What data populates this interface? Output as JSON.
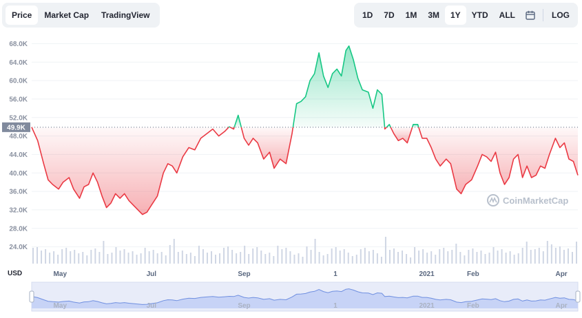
{
  "tabs": [
    {
      "label": "Price"
    },
    {
      "label": "Market Cap"
    },
    {
      "label": "TradingView"
    }
  ],
  "ranges": [
    {
      "label": "1D"
    },
    {
      "label": "7D"
    },
    {
      "label": "1M"
    },
    {
      "label": "3M"
    },
    {
      "label": "1Y"
    },
    {
      "label": "YTD"
    },
    {
      "label": "ALL"
    }
  ],
  "log_label": "LOG",
  "icons": {
    "calendar": "calendar-icon",
    "watermark": "coinmarketcap-logo-icon"
  },
  "watermark": "CoinMarketCap",
  "currency_label": "USD",
  "colors": {
    "up": "#16c784",
    "down": "#ea3943",
    "volume": "#cfd6e4",
    "navigator": "#6f8fe0"
  },
  "chart_data": {
    "type": "area",
    "reference_price": 49.9,
    "reference_label": "49.9K",
    "y_unit": "K USD",
    "ylim": [
      22,
      70
    ],
    "yticks": [
      24,
      28,
      32,
      36,
      40,
      44,
      48,
      52,
      56,
      60,
      64,
      68
    ],
    "ytick_labels": [
      "24.0K",
      "28.0K",
      "32.0K",
      "36.0K",
      "40.0K",
      "44.0K",
      "48.0K",
      "52.0K",
      "56.0K",
      "60.0K",
      "64.0K",
      "68.0K"
    ],
    "x_range": [
      "2021-04-12",
      "2022-04-12"
    ],
    "x_ticks": [
      {
        "date": "2021-05-01",
        "label": "May"
      },
      {
        "date": "2021-07-01",
        "label": "Jul"
      },
      {
        "date": "2021-09-01",
        "label": "Sep"
      },
      {
        "date": "2021-11-01",
        "label": "1"
      },
      {
        "date": "2022-01-01",
        "label": "2021"
      },
      {
        "date": "2022-02-01",
        "label": "Feb"
      },
      {
        "date": "2022-04-01",
        "label": "Apr"
      }
    ],
    "series": [
      {
        "points": [
          [
            "2021-04-12",
            49.9
          ],
          [
            "2021-04-16",
            47.0
          ],
          [
            "2021-04-20",
            42.0
          ],
          [
            "2021-04-23",
            38.5
          ],
          [
            "2021-04-26",
            37.5
          ],
          [
            "2021-04-30",
            36.5
          ],
          [
            "2021-05-03",
            38.0
          ],
          [
            "2021-05-07",
            39.0
          ],
          [
            "2021-05-10",
            36.5
          ],
          [
            "2021-05-14",
            34.5
          ],
          [
            "2021-05-17",
            37.0
          ],
          [
            "2021-05-20",
            37.5
          ],
          [
            "2021-05-23",
            40.0
          ],
          [
            "2021-05-26",
            38.0
          ],
          [
            "2021-05-29",
            35.0
          ],
          [
            "2021-06-01",
            32.5
          ],
          [
            "2021-06-04",
            33.5
          ],
          [
            "2021-06-07",
            35.5
          ],
          [
            "2021-06-10",
            34.5
          ],
          [
            "2021-06-13",
            35.5
          ],
          [
            "2021-06-16",
            34.0
          ],
          [
            "2021-06-19",
            33.0
          ],
          [
            "2021-06-22",
            32.0
          ],
          [
            "2021-06-25",
            31.0
          ],
          [
            "2021-06-28",
            31.5
          ],
          [
            "2021-07-01",
            33.0
          ],
          [
            "2021-07-05",
            35.0
          ],
          [
            "2021-07-09",
            40.0
          ],
          [
            "2021-07-12",
            42.0
          ],
          [
            "2021-07-15",
            41.5
          ],
          [
            "2021-07-18",
            40.0
          ],
          [
            "2021-07-22",
            43.5
          ],
          [
            "2021-07-26",
            45.5
          ],
          [
            "2021-07-30",
            45.0
          ],
          [
            "2021-08-03",
            47.5
          ],
          [
            "2021-08-07",
            48.5
          ],
          [
            "2021-08-11",
            49.5
          ],
          [
            "2021-08-15",
            48.0
          ],
          [
            "2021-08-19",
            49.0
          ],
          [
            "2021-08-22",
            50.0
          ],
          [
            "2021-08-25",
            49.5
          ],
          [
            "2021-08-28",
            52.5
          ],
          [
            "2021-09-01",
            47.5
          ],
          [
            "2021-09-04",
            46.0
          ],
          [
            "2021-09-07",
            47.5
          ],
          [
            "2021-09-10",
            46.5
          ],
          [
            "2021-09-14",
            43.0
          ],
          [
            "2021-09-18",
            44.5
          ],
          [
            "2021-09-21",
            41.0
          ],
          [
            "2021-09-25",
            43.0
          ],
          [
            "2021-09-29",
            42.0
          ],
          [
            "2021-10-03",
            48.5
          ],
          [
            "2021-10-06",
            55.0
          ],
          [
            "2021-10-09",
            55.5
          ],
          [
            "2021-10-12",
            56.5
          ],
          [
            "2021-10-15",
            60.0
          ],
          [
            "2021-10-18",
            61.5
          ],
          [
            "2021-10-21",
            66.0
          ],
          [
            "2021-10-24",
            61.0
          ],
          [
            "2021-10-27",
            58.5
          ],
          [
            "2021-10-30",
            61.5
          ],
          [
            "2021-11-02",
            62.5
          ],
          [
            "2021-11-05",
            61.0
          ],
          [
            "2021-11-08",
            66.5
          ],
          [
            "2021-11-10",
            67.5
          ],
          [
            "2021-11-13",
            64.5
          ],
          [
            "2021-11-16",
            60.5
          ],
          [
            "2021-11-19",
            58.0
          ],
          [
            "2021-11-23",
            57.5
          ],
          [
            "2021-11-26",
            54.0
          ],
          [
            "2021-11-29",
            58.0
          ],
          [
            "2021-12-02",
            57.0
          ],
          [
            "2021-12-04",
            49.5
          ],
          [
            "2021-12-07",
            50.5
          ],
          [
            "2021-12-10",
            48.5
          ],
          [
            "2021-12-13",
            47.0
          ],
          [
            "2021-12-16",
            47.5
          ],
          [
            "2021-12-19",
            46.5
          ],
          [
            "2021-12-23",
            50.5
          ],
          [
            "2021-12-26",
            50.5
          ],
          [
            "2021-12-29",
            47.5
          ],
          [
            "2022-01-01",
            47.5
          ],
          [
            "2022-01-04",
            45.5
          ],
          [
            "2022-01-07",
            43.0
          ],
          [
            "2022-01-10",
            41.5
          ],
          [
            "2022-01-14",
            43.0
          ],
          [
            "2022-01-17",
            42.0
          ],
          [
            "2022-01-21",
            36.5
          ],
          [
            "2022-01-24",
            35.5
          ],
          [
            "2022-01-27",
            37.5
          ],
          [
            "2022-01-31",
            38.5
          ],
          [
            "2022-02-04",
            41.5
          ],
          [
            "2022-02-07",
            44.0
          ],
          [
            "2022-02-10",
            43.5
          ],
          [
            "2022-02-13",
            42.5
          ],
          [
            "2022-02-16",
            44.5
          ],
          [
            "2022-02-19",
            40.0
          ],
          [
            "2022-02-22",
            37.5
          ],
          [
            "2022-02-25",
            39.0
          ],
          [
            "2022-02-28",
            43.0
          ],
          [
            "2022-03-03",
            44.0
          ],
          [
            "2022-03-06",
            39.0
          ],
          [
            "2022-03-09",
            41.5
          ],
          [
            "2022-03-12",
            39.0
          ],
          [
            "2022-03-15",
            39.5
          ],
          [
            "2022-03-18",
            41.5
          ],
          [
            "2022-03-21",
            41.0
          ],
          [
            "2022-03-24",
            44.0
          ],
          [
            "2022-03-28",
            47.5
          ],
          [
            "2022-03-31",
            45.5
          ],
          [
            "2022-04-03",
            46.5
          ],
          [
            "2022-04-06",
            43.0
          ],
          [
            "2022-04-09",
            42.5
          ],
          [
            "2022-04-12",
            39.5
          ]
        ]
      }
    ]
  }
}
